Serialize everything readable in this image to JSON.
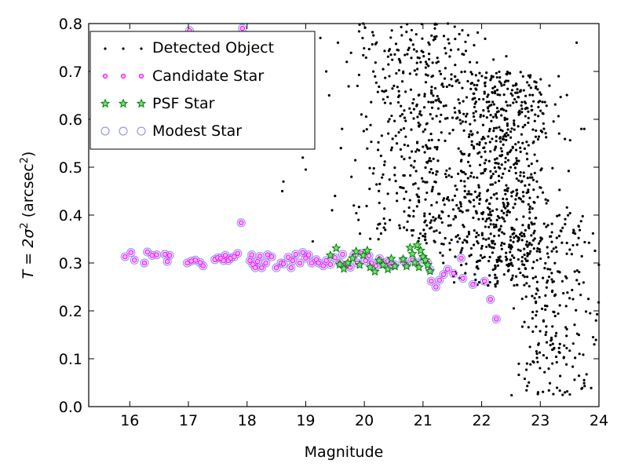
{
  "chart_data": {
    "type": "scatter",
    "xlabel": "Magnitude",
    "ylabel_parts": {
      "pre": "T = 2σ",
      "sup1": "2",
      "mid": " (arcsec",
      "sup2": "2",
      "post": ")"
    },
    "xlim": [
      15.3,
      24.0
    ],
    "ylim": [
      0.0,
      0.8
    ],
    "xticks": [
      "16",
      "17",
      "18",
      "19",
      "20",
      "21",
      "22",
      "23",
      "24"
    ],
    "yticks": [
      "0.0",
      "0.1",
      "0.2",
      "0.3",
      "0.4",
      "0.5",
      "0.6",
      "0.7",
      "0.8"
    ],
    "grid": false,
    "legend_placement": "top-left",
    "colors": {
      "detected": "#000000",
      "candidate_edge": "#ff00ff",
      "candidate_fill": "#ffb0ff",
      "psf": "#008000",
      "modest": "#9999ee"
    },
    "series": [
      {
        "name": "Detected Object",
        "marker": "dot"
      },
      {
        "name": "Candidate Star",
        "marker": "small-circle"
      },
      {
        "name": "PSF Star",
        "marker": "star"
      },
      {
        "name": "Modest Star",
        "marker": "open-circle"
      }
    ],
    "stellar_locus": [
      [
        15.92,
        0.313
      ],
      [
        16.02,
        0.322
      ],
      [
        16.08,
        0.306
      ],
      [
        16.25,
        0.3
      ],
      [
        16.3,
        0.323
      ],
      [
        16.38,
        0.316
      ],
      [
        16.46,
        0.317
      ],
      [
        16.6,
        0.318
      ],
      [
        16.64,
        0.303
      ],
      [
        16.68,
        0.316
      ],
      [
        16.98,
        0.3
      ],
      [
        17.05,
        0.304
      ],
      [
        17.12,
        0.306
      ],
      [
        17.2,
        0.301
      ],
      [
        17.25,
        0.294
      ],
      [
        17.45,
        0.307
      ],
      [
        17.5,
        0.311
      ],
      [
        17.55,
        0.31
      ],
      [
        17.6,
        0.305
      ],
      [
        17.63,
        0.316
      ],
      [
        17.68,
        0.305
      ],
      [
        17.72,
        0.31
      ],
      [
        17.78,
        0.313
      ],
      [
        17.84,
        0.32
      ],
      [
        17.9,
        0.384
      ],
      [
        18.05,
        0.305
      ],
      [
        18.08,
        0.317
      ],
      [
        18.1,
        0.297
      ],
      [
        18.14,
        0.29
      ],
      [
        18.18,
        0.303
      ],
      [
        18.22,
        0.314
      ],
      [
        18.25,
        0.29
      ],
      [
        18.32,
        0.3
      ],
      [
        18.35,
        0.317
      ],
      [
        18.42,
        0.313
      ],
      [
        18.5,
        0.29
      ],
      [
        18.58,
        0.3
      ],
      [
        18.62,
        0.298
      ],
      [
        18.7,
        0.312
      ],
      [
        18.75,
        0.29
      ],
      [
        18.78,
        0.305
      ],
      [
        18.83,
        0.318
      ],
      [
        18.9,
        0.3
      ],
      [
        18.95,
        0.322
      ],
      [
        19.0,
        0.31
      ],
      [
        19.05,
        0.317
      ],
      [
        19.1,
        0.3
      ],
      [
        19.18,
        0.307
      ],
      [
        19.22,
        0.3
      ],
      [
        19.3,
        0.294
      ],
      [
        19.35,
        0.305
      ],
      [
        19.42,
        0.297
      ],
      [
        19.5,
        0.311
      ],
      [
        19.58,
        0.3
      ],
      [
        19.63,
        0.318
      ],
      [
        19.7,
        0.297
      ],
      [
        19.76,
        0.291
      ],
      [
        19.82,
        0.316
      ],
      [
        19.88,
        0.3
      ],
      [
        19.95,
        0.32
      ],
      [
        20.02,
        0.305
      ],
      [
        20.08,
        0.315
      ],
      [
        20.12,
        0.3
      ],
      [
        20.2,
        0.294
      ],
      [
        20.26,
        0.309
      ],
      [
        20.32,
        0.298
      ],
      [
        20.4,
        0.304
      ],
      [
        20.46,
        0.293
      ],
      [
        20.52,
        0.296
      ],
      [
        20.66,
        0.305
      ],
      [
        20.72,
        0.297
      ],
      [
        20.82,
        0.306
      ],
      [
        20.9,
        0.3
      ],
      [
        21.0,
        0.31
      ],
      [
        21.08,
        0.3
      ],
      [
        21.12,
        0.286
      ],
      [
        21.14,
        0.262
      ],
      [
        21.22,
        0.25
      ],
      [
        21.28,
        0.264
      ],
      [
        21.35,
        0.276
      ],
      [
        21.42,
        0.287
      ],
      [
        21.52,
        0.278
      ],
      [
        21.68,
        0.268
      ],
      [
        21.85,
        0.255
      ],
      [
        22.05,
        0.262
      ],
      [
        22.15,
        0.224
      ],
      [
        22.25,
        0.183
      ],
      [
        17.02,
        0.785
      ],
      [
        17.92,
        0.79
      ],
      [
        21.65,
        0.31
      ]
    ],
    "psf_stars": [
      [
        19.42,
        0.316
      ],
      [
        19.52,
        0.331
      ],
      [
        19.58,
        0.297
      ],
      [
        19.65,
        0.288
      ],
      [
        19.72,
        0.3
      ],
      [
        19.8,
        0.31
      ],
      [
        19.86,
        0.324
      ],
      [
        19.92,
        0.296
      ],
      [
        19.98,
        0.316
      ],
      [
        20.05,
        0.326
      ],
      [
        20.1,
        0.291
      ],
      [
        20.18,
        0.282
      ],
      [
        20.25,
        0.305
      ],
      [
        20.32,
        0.296
      ],
      [
        20.4,
        0.287
      ],
      [
        20.46,
        0.309
      ],
      [
        20.52,
        0.293
      ],
      [
        20.66,
        0.308
      ],
      [
        20.72,
        0.293
      ],
      [
        20.78,
        0.332
      ],
      [
        20.82,
        0.319
      ],
      [
        20.86,
        0.301
      ],
      [
        20.9,
        0.337
      ],
      [
        20.93,
        0.291
      ],
      [
        20.96,
        0.326
      ],
      [
        21.0,
        0.313
      ],
      [
        21.04,
        0.306
      ],
      [
        21.08,
        0.296
      ],
      [
        21.12,
        0.283
      ]
    ],
    "detected_objects": {
      "sparse_bright": [
        [
          17.95,
          0.62
        ],
        [
          18.4,
          0.67
        ],
        [
          18.72,
          0.74
        ],
        [
          18.92,
          0.6
        ],
        [
          18.95,
          0.52
        ],
        [
          19.0,
          0.495
        ],
        [
          19.12,
          0.345
        ],
        [
          18.6,
          0.45
        ],
        [
          18.62,
          0.47
        ],
        [
          19.25,
          0.77
        ],
        [
          19.35,
          0.7
        ],
        [
          19.4,
          0.65
        ],
        [
          19.45,
          0.41
        ],
        [
          19.5,
          0.44
        ],
        [
          19.55,
          0.76
        ],
        [
          19.6,
          0.54
        ],
        [
          19.62,
          0.58
        ],
        [
          19.7,
          0.72
        ],
        [
          19.78,
          0.48
        ],
        [
          19.82,
          0.42
        ],
        [
          19.9,
          0.39
        ],
        [
          19.95,
          0.61
        ],
        [
          19.98,
          0.8
        ],
        [
          18.2,
          0.64
        ],
        [
          19.05,
          0.73
        ],
        [
          17.45,
          0.63
        ],
        [
          23.82,
          0.225
        ],
        [
          23.85,
          0.195
        ],
        [
          23.9,
          0.145
        ],
        [
          23.92,
          0.13
        ],
        [
          23.95,
          0.18
        ],
        [
          23.62,
          0.76
        ],
        [
          23.7,
          0.58
        ],
        [
          23.75,
          0.58
        ]
      ],
      "cloud": [
        {
          "x": [
            20.0,
            22.0
          ],
          "y": [
            0.34,
            0.8
          ],
          "n": 480
        },
        {
          "x": [
            21.5,
            23.2
          ],
          "y": [
            0.25,
            0.7
          ],
          "n": 720
        },
        {
          "x": [
            22.6,
            23.9
          ],
          "y": [
            0.02,
            0.4
          ],
          "n": 230
        }
      ]
    }
  }
}
